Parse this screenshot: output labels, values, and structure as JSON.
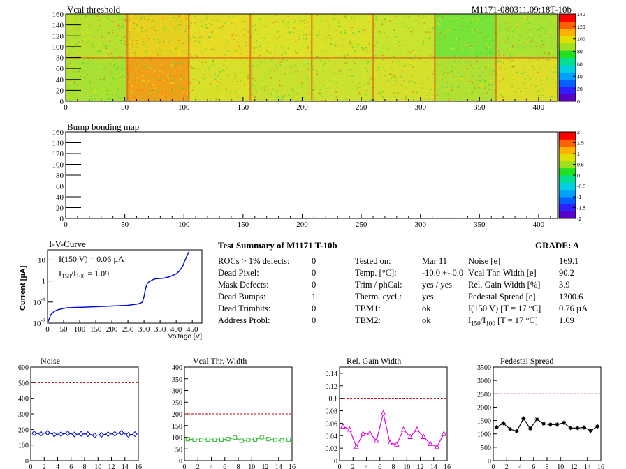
{
  "vcal_map": {
    "title": "Vcal threshold",
    "module_label": "M1171-080311.09:18T-10b",
    "yticks": [
      "0",
      "20",
      "40",
      "60",
      "80",
      "100",
      "120",
      "140",
      "160"
    ],
    "xticks": [
      "0",
      "50",
      "100",
      "150",
      "200",
      "250",
      "300",
      "350",
      "400"
    ],
    "palette_ticks": [
      "0",
      "20",
      "40",
      "60",
      "80",
      "100",
      "120",
      "140"
    ],
    "colors": {
      "low": "#1a3cff",
      "mid": "#35d23a",
      "high": "#ffdd00",
      "max": "#e00000"
    }
  },
  "bump_map": {
    "title": "Bump bonding map",
    "yticks": [
      "0",
      "20",
      "40",
      "60",
      "80",
      "100",
      "120",
      "140",
      "160"
    ],
    "xticks": [
      "0",
      "50",
      "100",
      "150",
      "200",
      "250",
      "300",
      "350",
      "400"
    ],
    "palette_ticks": [
      "-2",
      "-1.5",
      "-1",
      "-0.5",
      "0",
      "0.5",
      "1",
      "1.5",
      "2"
    ]
  },
  "iv": {
    "title": "I-V-Curve",
    "ylabel": "Current [µA]",
    "xlabel": "Voltage [V]",
    "annot1": "I(150 V) = 0.06 µA",
    "annot2_pre": "I",
    "annot2_sub1": "150",
    "annot2_mid": "/I",
    "annot2_sub2": "100",
    "annot2_val": "=  1.09",
    "xticks": [
      "0",
      "50",
      "100",
      "150",
      "200",
      "250",
      "300",
      "350",
      "400",
      "450"
    ],
    "ytick_labels": [
      {
        "base": "10",
        "exp": "-2"
      },
      {
        "base": "10",
        "exp": "-1"
      },
      {
        "base": "1",
        "exp": ""
      },
      {
        "base": "10",
        "exp": ""
      }
    ],
    "chart_data": {
      "type": "line",
      "x": [
        0,
        10,
        20,
        30,
        40,
        50,
        60,
        80,
        100,
        150,
        200,
        250,
        280,
        290,
        295,
        300,
        305,
        310,
        315,
        320,
        330,
        340,
        360,
        380,
        400,
        410,
        420,
        430,
        440
      ],
      "y": [
        0.01,
        0.025,
        0.035,
        0.042,
        0.046,
        0.05,
        0.053,
        0.055,
        0.056,
        0.06,
        0.065,
        0.07,
        0.08,
        0.09,
        0.1,
        0.18,
        0.45,
        0.75,
        0.9,
        1.0,
        1.2,
        1.3,
        1.35,
        1.6,
        2.2,
        3.0,
        5.0,
        12,
        25
      ],
      "xlim": [
        0,
        480
      ],
      "ylim": [
        0.01,
        30
      ],
      "yscale": "log"
    }
  },
  "summary": {
    "title": "Test Summary of M1171    T-10b",
    "grade": "GRADE:  A",
    "col1_labels": [
      "ROCs > 1% defects:",
      "Dead Pixel:",
      "Mask Defects:",
      "Dead Bumps:",
      "Dead Trimbits:",
      "Address Probl:"
    ],
    "col1_values": [
      "0",
      "0",
      "0",
      "1",
      "0",
      "0"
    ],
    "col2_labels": [
      "Tested on:",
      "Temp. [°C]:",
      "Trim / phCal:",
      "Therm. cycl.:",
      "TBM1:",
      "TBM2:"
    ],
    "col2_values": [
      "Mar 11",
      "-10.0 +- 0.0",
      "yes / yes",
      "yes",
      "ok",
      "ok"
    ],
    "col3_labels": [
      "Noise [e]",
      "Vcal Thr. Width [e]",
      "Rel. Gain Width [%]",
      "Pedestal Spread [e]",
      "I(150 V) [T = 17 °C]"
    ],
    "col3_values": [
      "169.1",
      "90.2",
      "3.9",
      "1300.6",
      "0.76 µA",
      "1.09"
    ],
    "ratio_label_pre": "I",
    "ratio_sub1": "150",
    "ratio_mid": "/I",
    "ratio_sub2": "100",
    "ratio_suffix": "  [T = 17 °C]"
  },
  "chart_data": [
    {
      "type": "line",
      "title": "Noise",
      "x": [
        0,
        1,
        2,
        3,
        4,
        5,
        6,
        7,
        8,
        9,
        10,
        11,
        12,
        13,
        14,
        15
      ],
      "y": [
        175,
        172,
        178,
        168,
        170,
        175,
        168,
        172,
        170,
        162,
        165,
        170,
        172,
        178,
        165,
        170
      ],
      "ylim": [
        0,
        600
      ],
      "xlim": [
        0,
        16
      ],
      "yticks": [
        0,
        100,
        200,
        300,
        400,
        500,
        600
      ],
      "xticks": [
        0,
        2,
        4,
        6,
        8,
        10,
        12,
        14,
        16
      ],
      "limit": 500,
      "color": "#0010d0",
      "marker": "diamond"
    },
    {
      "type": "line",
      "title": "Vcal Thr. Width",
      "x": [
        0,
        1,
        2,
        3,
        4,
        5,
        6,
        7,
        8,
        9,
        10,
        11,
        12,
        13,
        14,
        15
      ],
      "y": [
        92,
        90,
        88,
        90,
        89,
        90,
        92,
        98,
        85,
        88,
        90,
        100,
        92,
        88,
        86,
        90
      ],
      "ylim": [
        0,
        400
      ],
      "xlim": [
        0,
        16
      ],
      "yticks": [
        0,
        50,
        100,
        150,
        200,
        250,
        300,
        350,
        400
      ],
      "xticks": [
        0,
        2,
        4,
        6,
        8,
        10,
        12,
        14,
        16
      ],
      "limit": 200,
      "color": "#2db82d",
      "marker": "square"
    },
    {
      "type": "line",
      "title": "Rel. Gain Width",
      "x": [
        0,
        1,
        2,
        3,
        4,
        5,
        6,
        7,
        8,
        9,
        10,
        11,
        12,
        13,
        14,
        15
      ],
      "y": [
        0.055,
        0.05,
        0.022,
        0.043,
        0.044,
        0.032,
        0.076,
        0.028,
        0.026,
        0.05,
        0.038,
        0.05,
        0.038,
        0.027,
        0.022,
        0.043
      ],
      "ylim": [
        0,
        0.15
      ],
      "xlim": [
        0,
        16
      ],
      "yticks": [
        0,
        0.02,
        0.04,
        0.06,
        0.08,
        0.1,
        0.12,
        0.14
      ],
      "xticks": [
        0,
        2,
        4,
        6,
        8,
        10,
        12,
        14,
        16
      ],
      "limit": 0.1,
      "color": "#e000e0",
      "marker": "triangle"
    },
    {
      "type": "line",
      "title": "Pedestal Spread",
      "x": [
        0,
        1,
        2,
        3,
        4,
        5,
        6,
        7,
        8,
        9,
        10,
        11,
        12,
        13,
        14,
        15
      ],
      "y": [
        1250,
        1400,
        1180,
        1100,
        1580,
        1200,
        1550,
        1380,
        1350,
        1350,
        1420,
        1220,
        1220,
        1240,
        1120,
        1280
      ],
      "ylim": [
        0,
        3500
      ],
      "xlim": [
        0,
        16
      ],
      "yticks": [
        0,
        500,
        1000,
        1500,
        2000,
        2500,
        3000,
        3500
      ],
      "xticks": [
        0,
        2,
        4,
        6,
        8,
        10,
        12,
        14,
        16
      ],
      "limit": 2500,
      "color": "#000000",
      "marker": "star"
    }
  ]
}
